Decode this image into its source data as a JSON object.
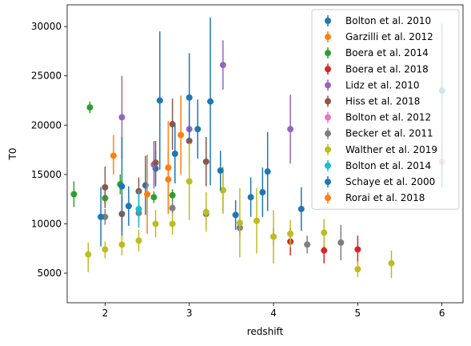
{
  "chart_data": {
    "type": "scatter",
    "error_bars": true,
    "xlabel": "redshift",
    "ylabel": "T0",
    "xlim": [
      1.55,
      6.25
    ],
    "ylim": [
      2000,
      32200
    ],
    "xticks": [
      "2",
      "3",
      "4",
      "5",
      "6"
    ],
    "yticks": [
      "5000",
      "10000",
      "15000",
      "20000",
      "25000",
      "30000"
    ],
    "grid": false,
    "legend_position": "upper-right",
    "series": [
      {
        "name": "Bolton et al. 2010",
        "color": "#1f77b4",
        "points": [
          {
            "x": 2.6,
            "y": 15600,
            "lo": 13800,
            "hi": 17400
          }
        ]
      },
      {
        "name": "Garzilli et al. 2012",
        "color": "#ff7f0e",
        "points": [
          {
            "x": 2.1,
            "y": 16900,
            "lo": 15000,
            "hi": 19000
          },
          {
            "x": 2.75,
            "y": 14500,
            "lo": 11500,
            "hi": 17500
          },
          {
            "x": 2.9,
            "y": 19000,
            "lo": 15000,
            "hi": 23000
          }
        ]
      },
      {
        "name": "Boera et al. 2014",
        "color": "#2ca02c",
        "points": [
          {
            "x": 1.63,
            "y": 13000,
            "lo": 11700,
            "hi": 14300
          },
          {
            "x": 1.82,
            "y": 21800,
            "lo": 21200,
            "hi": 22400
          },
          {
            "x": 2.0,
            "y": 12600,
            "lo": 12000,
            "hi": 13200
          },
          {
            "x": 2.18,
            "y": 14000,
            "lo": 13000,
            "hi": 15000
          },
          {
            "x": 2.58,
            "y": 12700,
            "lo": 12100,
            "hi": 13300
          },
          {
            "x": 2.8,
            "y": 12900,
            "lo": 12300,
            "hi": 13500
          }
        ]
      },
      {
        "name": "Boera et al. 2018",
        "color": "#d62728",
        "points": [
          {
            "x": 4.2,
            "y": 8200,
            "lo": 6800,
            "hi": 9600
          },
          {
            "x": 4.6,
            "y": 7300,
            "lo": 6000,
            "hi": 8600
          },
          {
            "x": 5.0,
            "y": 7400,
            "lo": 6000,
            "hi": 8800
          }
        ]
      },
      {
        "name": "Lidz et al. 2010",
        "color": "#9467bd",
        "points": [
          {
            "x": 2.2,
            "y": 20800,
            "lo": 16600,
            "hi": 25000
          },
          {
            "x": 2.58,
            "y": 16000,
            "lo": 13600,
            "hi": 18400
          },
          {
            "x": 3.0,
            "y": 19600,
            "lo": 17400,
            "hi": 21800
          },
          {
            "x": 3.4,
            "y": 26100,
            "lo": 23600,
            "hi": 28600
          },
          {
            "x": 4.2,
            "y": 19600,
            "lo": 16100,
            "hi": 23100
          }
        ]
      },
      {
        "name": "Hiss et al. 2018",
        "color": "#8c564b",
        "points": [
          {
            "x": 2.0,
            "y": 13700,
            "lo": 11600,
            "hi": 15800
          },
          {
            "x": 2.2,
            "y": 11000,
            "lo": 9200,
            "hi": 12800
          },
          {
            "x": 2.4,
            "y": 13300,
            "lo": 11900,
            "hi": 14700
          },
          {
            "x": 2.6,
            "y": 16200,
            "lo": 14000,
            "hi": 18400
          },
          {
            "x": 2.8,
            "y": 20100,
            "lo": 17500,
            "hi": 22700
          },
          {
            "x": 3.0,
            "y": 18400,
            "lo": 16000,
            "hi": 20800
          },
          {
            "x": 3.2,
            "y": 16300,
            "lo": 13800,
            "hi": 18800
          },
          {
            "x": 3.4,
            "y": 13400,
            "lo": 11200,
            "hi": 15600
          }
        ]
      },
      {
        "name": "Bolton et al. 2012",
        "color": "#e377c2",
        "points": [
          {
            "x": 6.0,
            "y": 16300,
            "lo": 14900,
            "hi": 17700
          }
        ]
      },
      {
        "name": "Becker et al. 2011",
        "color": "#7f7f7f",
        "points": [
          {
            "x": 2.0,
            "y": 10700,
            "lo": 9900,
            "hi": 11500
          },
          {
            "x": 2.4,
            "y": 11100,
            "lo": 10200,
            "hi": 12000
          },
          {
            "x": 2.8,
            "y": 11600,
            "lo": 10800,
            "hi": 12400
          },
          {
            "x": 3.2,
            "y": 11000,
            "lo": 10000,
            "hi": 12000
          },
          {
            "x": 3.6,
            "y": 9600,
            "lo": 8700,
            "hi": 10500
          },
          {
            "x": 4.0,
            "y": 8700,
            "lo": 7800,
            "hi": 9600
          },
          {
            "x": 4.4,
            "y": 7900,
            "lo": 7000,
            "hi": 8800
          },
          {
            "x": 4.8,
            "y": 8100,
            "lo": 6300,
            "hi": 9900
          }
        ]
      },
      {
        "name": "Walther et al. 2019",
        "color": "#bcbd22",
        "points": [
          {
            "x": 1.8,
            "y": 6900,
            "lo": 5100,
            "hi": 8100
          },
          {
            "x": 2.0,
            "y": 7400,
            "lo": 6500,
            "hi": 8200
          },
          {
            "x": 2.2,
            "y": 7900,
            "lo": 6800,
            "hi": 9000
          },
          {
            "x": 2.4,
            "y": 8300,
            "lo": 7200,
            "hi": 9400
          },
          {
            "x": 2.6,
            "y": 10000,
            "lo": 8600,
            "hi": 11400
          },
          {
            "x": 2.8,
            "y": 10000,
            "lo": 8900,
            "hi": 11100
          },
          {
            "x": 3.0,
            "y": 14300,
            "lo": 10400,
            "hi": 18200
          },
          {
            "x": 3.2,
            "y": 11200,
            "lo": 9200,
            "hi": 13200
          },
          {
            "x": 3.4,
            "y": 13400,
            "lo": 11000,
            "hi": 15800
          },
          {
            "x": 3.6,
            "y": 10100,
            "lo": 6600,
            "hi": 13600
          },
          {
            "x": 3.8,
            "y": 10300,
            "lo": 7000,
            "hi": 13600
          },
          {
            "x": 4.0,
            "y": 8700,
            "lo": 6000,
            "hi": 11400
          },
          {
            "x": 4.2,
            "y": 9000,
            "lo": 7600,
            "hi": 10400
          },
          {
            "x": 4.6,
            "y": 9100,
            "lo": 7700,
            "hi": 10500
          },
          {
            "x": 5.0,
            "y": 5400,
            "lo": 4600,
            "hi": 6200
          },
          {
            "x": 5.4,
            "y": 6000,
            "lo": 4500,
            "hi": 7300
          }
        ]
      },
      {
        "name": "Bolton et al. 2014",
        "color": "#17becf",
        "points": [
          {
            "x": 2.4,
            "y": 11500,
            "lo": 9600,
            "hi": 13400
          }
        ]
      },
      {
        "name": "Schaye et al. 2000",
        "color": "#1f77b4",
        "points": [
          {
            "x": 1.95,
            "y": 10700,
            "lo": 7700,
            "hi": 13700
          },
          {
            "x": 2.2,
            "y": 13800,
            "lo": 8800,
            "hi": 18800
          },
          {
            "x": 2.28,
            "y": 11800,
            "lo": 9800,
            "hi": 13800
          },
          {
            "x": 2.48,
            "y": 13900,
            "lo": 10900,
            "hi": 16900
          },
          {
            "x": 2.65,
            "y": 22500,
            "lo": 15500,
            "hi": 29500
          },
          {
            "x": 2.83,
            "y": 17100,
            "lo": 14100,
            "hi": 20100
          },
          {
            "x": 3.0,
            "y": 22800,
            "lo": 18300,
            "hi": 27300
          },
          {
            "x": 3.1,
            "y": 19600,
            "lo": 16600,
            "hi": 22600
          },
          {
            "x": 3.25,
            "y": 22400,
            "lo": 13900,
            "hi": 30900
          },
          {
            "x": 3.37,
            "y": 15400,
            "lo": 13400,
            "hi": 17400
          },
          {
            "x": 3.55,
            "y": 10900,
            "lo": 9400,
            "hi": 12400
          },
          {
            "x": 3.73,
            "y": 12700,
            "lo": 10700,
            "hi": 14700
          },
          {
            "x": 3.87,
            "y": 13200,
            "lo": 10700,
            "hi": 15700
          },
          {
            "x": 3.93,
            "y": 15300,
            "lo": 11300,
            "hi": 19300
          },
          {
            "x": 4.33,
            "y": 11500,
            "lo": 9300,
            "hi": 13700
          },
          {
            "x": 6.0,
            "y": 23500,
            "lo": 13700,
            "hi": 30300
          }
        ]
      },
      {
        "name": "Rorai et al. 2018",
        "color": "#ff7f0e",
        "points": [
          {
            "x": 2.5,
            "y": 13000,
            "lo": 9000,
            "hi": 17000
          },
          {
            "x": 2.75,
            "y": 15700,
            "lo": 11000,
            "hi": 20400
          }
        ]
      }
    ]
  }
}
